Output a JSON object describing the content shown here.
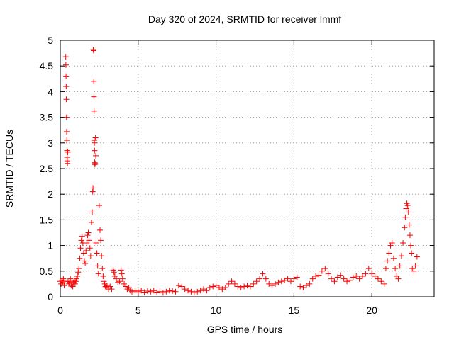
{
  "chart_data": {
    "type": "scatter",
    "title": "Day 320 of 2024, SRMTID for receiver lmmf",
    "xlabel": "GPS time / hours",
    "ylabel": "SRMTID / TECUs",
    "xlim": [
      0,
      24
    ],
    "ylim": [
      0,
      5
    ],
    "x_ticks": [
      0,
      5,
      10,
      15,
      20
    ],
    "x_tick_labels": [
      "0",
      "5",
      "10",
      "15",
      "20"
    ],
    "y_ticks": [
      0,
      0.5,
      1,
      1.5,
      2,
      2.5,
      3,
      3.5,
      4,
      4.5,
      5
    ],
    "y_tick_labels": [
      "0",
      "0.5",
      "1",
      "1.5",
      "2",
      "2.5",
      "3",
      "3.5",
      "4",
      "4.5",
      "5"
    ],
    "grid": true,
    "marker": "plus",
    "color": "#ff0000",
    "series": [
      {
        "name": "SRMTID",
        "points": [
          [
            0.0,
            0.3
          ],
          [
            0.05,
            0.25
          ],
          [
            0.1,
            0.32
          ],
          [
            0.15,
            0.28
          ],
          [
            0.2,
            0.35
          ],
          [
            0.25,
            0.22
          ],
          [
            0.3,
            0.3
          ],
          [
            0.35,
            4.68
          ],
          [
            0.36,
            4.52
          ],
          [
            0.37,
            4.3
          ],
          [
            0.38,
            4.1
          ],
          [
            0.39,
            3.85
          ],
          [
            0.4,
            3.5
          ],
          [
            0.41,
            3.22
          ],
          [
            0.42,
            3.05
          ],
          [
            0.43,
            2.85
          ],
          [
            0.44,
            2.72
          ],
          [
            0.45,
            2.65
          ],
          [
            0.46,
            2.6
          ],
          [
            0.48,
            2.82
          ],
          [
            0.5,
            0.3
          ],
          [
            0.55,
            0.25
          ],
          [
            0.6,
            0.28
          ],
          [
            0.65,
            0.35
          ],
          [
            0.7,
            0.22
          ],
          [
            0.75,
            0.3
          ],
          [
            0.8,
            0.2
          ],
          [
            0.85,
            0.28
          ],
          [
            0.9,
            0.32
          ],
          [
            0.95,
            0.25
          ],
          [
            1.0,
            0.3
          ],
          [
            1.05,
            0.35
          ],
          [
            1.1,
            0.4
          ],
          [
            1.15,
            0.48
          ],
          [
            1.2,
            0.55
          ],
          [
            1.25,
            0.75
          ],
          [
            1.3,
            0.95
          ],
          [
            1.35,
            1.1
          ],
          [
            1.4,
            1.18
          ],
          [
            1.45,
            1.05
          ],
          [
            1.5,
            0.85
          ],
          [
            1.55,
            0.7
          ],
          [
            1.6,
            0.65
          ],
          [
            1.65,
            0.9
          ],
          [
            1.7,
            1.05
          ],
          [
            1.75,
            1.2
          ],
          [
            1.8,
            1.25
          ],
          [
            1.85,
            1.1
          ],
          [
            1.9,
            0.95
          ],
          [
            1.95,
            0.8
          ],
          [
            2.0,
            1.45
          ],
          [
            2.05,
            1.65
          ],
          [
            2.08,
            2.05
          ],
          [
            2.1,
            2.12
          ],
          [
            2.12,
            4.82
          ],
          [
            2.14,
            4.8
          ],
          [
            2.15,
            4.2
          ],
          [
            2.16,
            3.9
          ],
          [
            2.17,
            3.62
          ],
          [
            2.18,
            3.05
          ],
          [
            2.19,
            3.0
          ],
          [
            2.2,
            2.85
          ],
          [
            2.21,
            2.62
          ],
          [
            2.22,
            2.58
          ],
          [
            2.24,
            2.6
          ],
          [
            2.26,
            3.1
          ],
          [
            2.28,
            2.75
          ],
          [
            2.3,
            1.05
          ],
          [
            2.35,
            0.85
          ],
          [
            2.4,
            0.6
          ],
          [
            2.45,
            0.45
          ],
          [
            2.5,
            1.78
          ],
          [
            2.55,
            1.3
          ],
          [
            2.6,
            1.1
          ],
          [
            2.65,
            0.8
          ],
          [
            2.7,
            0.55
          ],
          [
            2.75,
            0.4
          ],
          [
            2.8,
            0.3
          ],
          [
            2.85,
            0.25
          ],
          [
            2.9,
            0.2
          ],
          [
            2.95,
            0.18
          ],
          [
            3.0,
            0.22
          ],
          [
            3.1,
            0.15
          ],
          [
            3.2,
            0.2
          ],
          [
            3.3,
            0.15
          ],
          [
            3.4,
            0.52
          ],
          [
            3.45,
            0.48
          ],
          [
            3.5,
            0.4
          ],
          [
            3.6,
            0.35
          ],
          [
            3.7,
            0.28
          ],
          [
            3.8,
            0.3
          ],
          [
            3.9,
            0.52
          ],
          [
            3.95,
            0.45
          ],
          [
            4.0,
            0.35
          ],
          [
            4.1,
            0.25
          ],
          [
            4.2,
            0.2
          ],
          [
            4.3,
            0.15
          ],
          [
            4.4,
            0.18
          ],
          [
            4.5,
            0.12
          ],
          [
            4.6,
            0.1
          ],
          [
            4.8,
            0.12
          ],
          [
            5.0,
            0.1
          ],
          [
            5.2,
            0.12
          ],
          [
            5.4,
            0.09
          ],
          [
            5.6,
            0.11
          ],
          [
            5.8,
            0.1
          ],
          [
            6.0,
            0.12
          ],
          [
            6.2,
            0.09
          ],
          [
            6.4,
            0.1
          ],
          [
            6.6,
            0.08
          ],
          [
            6.8,
            0.1
          ],
          [
            7.0,
            0.12
          ],
          [
            7.2,
            0.11
          ],
          [
            7.4,
            0.1
          ],
          [
            7.6,
            0.22
          ],
          [
            7.8,
            0.2
          ],
          [
            8.0,
            0.15
          ],
          [
            8.2,
            0.12
          ],
          [
            8.4,
            0.1
          ],
          [
            8.6,
            0.08
          ],
          [
            8.8,
            0.1
          ],
          [
            9.0,
            0.12
          ],
          [
            9.2,
            0.15
          ],
          [
            9.4,
            0.12
          ],
          [
            9.6,
            0.18
          ],
          [
            9.8,
            0.2
          ],
          [
            10.0,
            0.22
          ],
          [
            10.2,
            0.18
          ],
          [
            10.4,
            0.15
          ],
          [
            10.6,
            0.18
          ],
          [
            10.8,
            0.25
          ],
          [
            11.0,
            0.3
          ],
          [
            11.2,
            0.25
          ],
          [
            11.4,
            0.2
          ],
          [
            11.6,
            0.18
          ],
          [
            11.8,
            0.2
          ],
          [
            12.0,
            0.22
          ],
          [
            12.2,
            0.2
          ],
          [
            12.4,
            0.25
          ],
          [
            12.6,
            0.3
          ],
          [
            12.8,
            0.35
          ],
          [
            13.0,
            0.45
          ],
          [
            13.2,
            0.35
          ],
          [
            13.4,
            0.25
          ],
          [
            13.6,
            0.22
          ],
          [
            13.8,
            0.25
          ],
          [
            14.0,
            0.28
          ],
          [
            14.2,
            0.3
          ],
          [
            14.4,
            0.32
          ],
          [
            14.6,
            0.35
          ],
          [
            14.8,
            0.3
          ],
          [
            15.0,
            0.35
          ],
          [
            15.2,
            0.38
          ],
          [
            15.4,
            0.2
          ],
          [
            15.6,
            0.18
          ],
          [
            15.8,
            0.22
          ],
          [
            16.0,
            0.25
          ],
          [
            16.2,
            0.35
          ],
          [
            16.4,
            0.4
          ],
          [
            16.6,
            0.42
          ],
          [
            16.8,
            0.5
          ],
          [
            17.0,
            0.55
          ],
          [
            17.2,
            0.45
          ],
          [
            17.4,
            0.35
          ],
          [
            17.6,
            0.3
          ],
          [
            17.8,
            0.38
          ],
          [
            18.0,
            0.42
          ],
          [
            18.2,
            0.35
          ],
          [
            18.4,
            0.3
          ],
          [
            18.6,
            0.32
          ],
          [
            18.8,
            0.38
          ],
          [
            19.0,
            0.4
          ],
          [
            19.2,
            0.35
          ],
          [
            19.4,
            0.4
          ],
          [
            19.6,
            0.45
          ],
          [
            19.8,
            0.55
          ],
          [
            20.0,
            0.45
          ],
          [
            20.2,
            0.4
          ],
          [
            20.4,
            0.35
          ],
          [
            20.6,
            0.3
          ],
          [
            20.8,
            0.25
          ],
          [
            20.9,
            0.55
          ],
          [
            21.0,
            0.7
          ],
          [
            21.1,
            0.85
          ],
          [
            21.2,
            1.0
          ],
          [
            21.3,
            1.05
          ],
          [
            21.4,
            0.75
          ],
          [
            21.5,
            0.55
          ],
          [
            21.6,
            0.4
          ],
          [
            21.7,
            0.35
          ],
          [
            21.8,
            0.6
          ],
          [
            21.9,
            0.8
          ],
          [
            22.0,
            1.05
          ],
          [
            22.1,
            1.35
          ],
          [
            22.15,
            1.55
          ],
          [
            22.2,
            1.72
          ],
          [
            22.25,
            1.82
          ],
          [
            22.3,
            1.78
          ],
          [
            22.35,
            1.65
          ],
          [
            22.4,
            1.4
          ],
          [
            22.45,
            1.2
          ],
          [
            22.5,
            1.0
          ],
          [
            22.55,
            0.85
          ],
          [
            22.6,
            0.55
          ],
          [
            22.7,
            0.5
          ],
          [
            22.8,
            0.6
          ],
          [
            22.9,
            0.78
          ]
        ]
      }
    ]
  }
}
